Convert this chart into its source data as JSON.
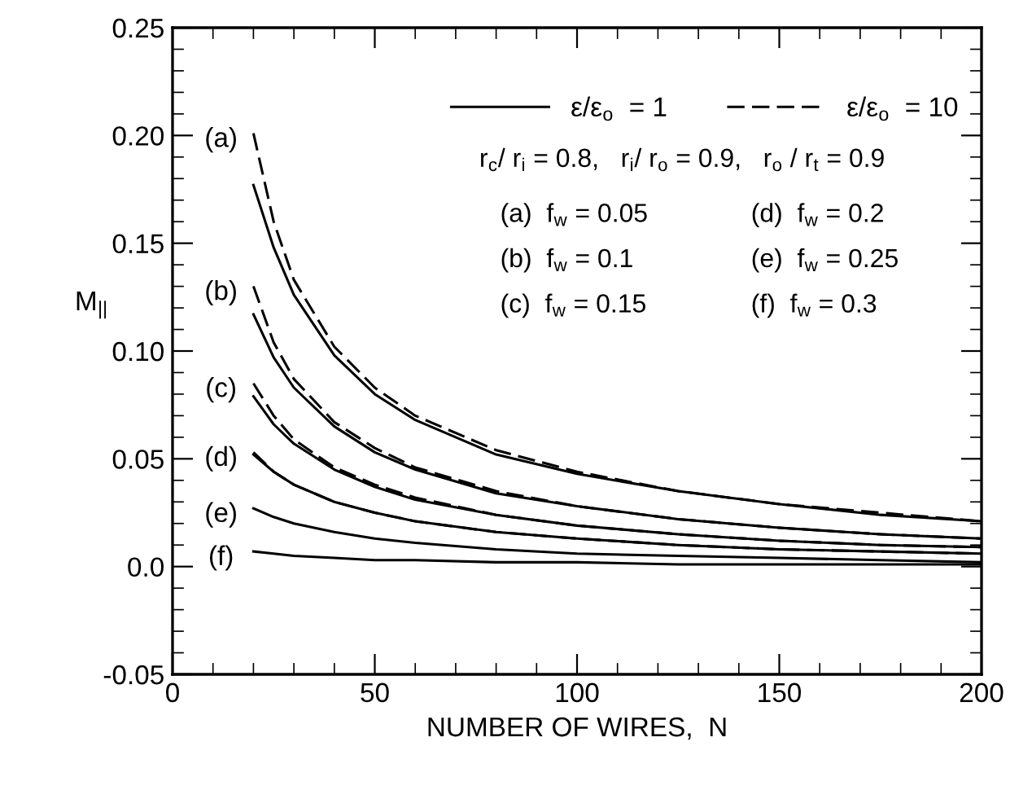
{
  "chart_data": {
    "type": "line",
    "xlabel": "NUMBER OF WIRES,  N",
    "ylabel": "M$_{||}$",
    "x": [
      20,
      25,
      30,
      40,
      50,
      60,
      80,
      100,
      125,
      150,
      175,
      200
    ],
    "xlim": [
      0,
      200
    ],
    "ylim": [
      -0.05,
      0.25
    ],
    "xticks": [
      0,
      {
        "value": 10,
        "label": null
      },
      {
        "value": 20,
        "label": null
      },
      {
        "value": 30,
        "label": null
      },
      {
        "value": 40,
        "label": null
      },
      50,
      {
        "value": 60,
        "label": null
      },
      {
        "value": 70,
        "label": null
      },
      {
        "value": 80,
        "label": null
      },
      {
        "value": 90,
        "label": null
      },
      100,
      {
        "value": 110,
        "label": null
      },
      {
        "value": 120,
        "label": null
      },
      {
        "value": 130,
        "label": null
      },
      {
        "value": 140,
        "label": null
      },
      150,
      {
        "value": 160,
        "label": null
      },
      {
        "value": 170,
        "label": null
      },
      {
        "value": 180,
        "label": null
      },
      {
        "value": 190,
        "label": null
      },
      200
    ],
    "yticks": [
      {
        "value": -0.05,
        "label": "-0.05"
      },
      {
        "value": -0.04,
        "label": null
      },
      {
        "value": -0.03,
        "label": null
      },
      {
        "value": -0.02,
        "label": null
      },
      {
        "value": -0.01,
        "label": null
      },
      {
        "value": 0,
        "label": "0.0"
      },
      {
        "value": 0.01,
        "label": null
      },
      {
        "value": 0.02,
        "label": null
      },
      {
        "value": 0.03,
        "label": null
      },
      {
        "value": 0.04,
        "label": null
      },
      {
        "value": 0.05,
        "label": "0.05"
      },
      {
        "value": 0.06,
        "label": null
      },
      {
        "value": 0.07,
        "label": null
      },
      {
        "value": 0.08,
        "label": null
      },
      {
        "value": 0.09,
        "label": null
      },
      {
        "value": 0.1,
        "label": "0.10"
      },
      {
        "value": 0.11,
        "label": null
      },
      {
        "value": 0.12,
        "label": null
      },
      {
        "value": 0.13,
        "label": null
      },
      {
        "value": 0.14,
        "label": null
      },
      {
        "value": 0.15,
        "label": "0.15"
      },
      {
        "value": 0.16,
        "label": null
      },
      {
        "value": 0.17,
        "label": null
      },
      {
        "value": 0.18,
        "label": null
      },
      {
        "value": 0.19,
        "label": null
      },
      {
        "value": 0.2,
        "label": "0.20"
      },
      {
        "value": 0.21,
        "label": null
      },
      {
        "value": 0.22,
        "label": null
      },
      {
        "value": 0.23,
        "label": null
      },
      {
        "value": 0.24,
        "label": null
      },
      {
        "value": 0.25,
        "label": "0.25"
      }
    ],
    "grid": false,
    "legend": "top right",
    "marker": "none",
    "series": [
      {
        "name": "ε/ε$_{o}$  = 1",
        "color": "#000000",
        "line_style": "solid",
        "values": [
          0.177,
          0.148,
          0.126,
          0.098,
          0.08,
          0.068,
          0.052,
          0.043,
          0.035,
          0.029,
          0.024,
          0.021
        ]
      },
      {
        "name": "ε/ε$_{o}$  = 10",
        "color": "#000000",
        "line_style": "dashed",
        "values": [
          0.201,
          0.16,
          0.133,
          0.102,
          0.083,
          0.07,
          0.054,
          0.044,
          0.035,
          0.029,
          0.025,
          0.021
        ]
      },
      {
        "color": "#000000",
        "line_style": "solid",
        "values": [
          0.117,
          0.097,
          0.083,
          0.065,
          0.053,
          0.045,
          0.034,
          0.028,
          0.022,
          0.018,
          0.015,
          0.013
        ]
      },
      {
        "color": "#000000",
        "line_style": "dashed",
        "values": [
          0.13,
          0.104,
          0.087,
          0.067,
          0.055,
          0.046,
          0.035,
          0.028,
          0.022,
          0.018,
          0.015,
          0.013
        ]
      },
      {
        "color": "#000000",
        "line_style": "solid",
        "values": [
          0.079,
          0.066,
          0.057,
          0.045,
          0.037,
          0.031,
          0.024,
          0.019,
          0.015,
          0.012,
          0.01,
          0.009
        ]
      },
      {
        "color": "#000000",
        "line_style": "dashed",
        "values": [
          0.085,
          0.07,
          0.059,
          0.046,
          0.038,
          0.032,
          0.024,
          0.019,
          0.015,
          0.012,
          0.01,
          0.009
        ]
      },
      {
        "color": "#000000",
        "line_style": "solid",
        "values": [
          0.052,
          0.044,
          0.038,
          0.03,
          0.025,
          0.021,
          0.016,
          0.013,
          0.01,
          0.008,
          0.007,
          0.006
        ]
      },
      {
        "color": "#000000",
        "line_style": "dashed",
        "values": [
          0.053,
          0.044,
          0.038,
          0.03,
          0.025,
          0.021,
          0.016,
          0.013,
          0.01,
          0.008,
          0.007,
          0.006
        ]
      },
      {
        "color": "#000000",
        "line_style": "solid",
        "values": [
          0.027,
          0.023,
          0.02,
          0.016,
          0.013,
          0.011,
          0.008,
          0.006,
          0.005,
          0.004,
          0.003,
          0.002
        ]
      },
      {
        "color": "#000000",
        "line_style": "solid",
        "values": [
          0.007,
          0.006,
          0.005,
          0.004,
          0.003,
          0.003,
          0.002,
          0.002,
          0.001,
          0.001,
          0.001,
          0.001
        ]
      }
    ],
    "annotations": [
      "(a)",
      "(b)",
      "(c)",
      "(d)",
      "(e)",
      "(f)",
      "r$_{c}$/ r$_{i}$ = 0.8,   r$_{i}$/ r$_{o}$ = 0.9,   r$_{o}$ / r$_{t}$ = 0.9",
      "(a)  f$_{w}$ = 0.05",
      "(b)  f$_{w}$ = 0.1",
      "(c)  f$_{w}$ = 0.15",
      "(d)  f$_{w}$ = 0.2",
      "(e)  f$_{w}$ = 0.25",
      "(f)  f$_{w}$ = 0.3"
    ]
  }
}
